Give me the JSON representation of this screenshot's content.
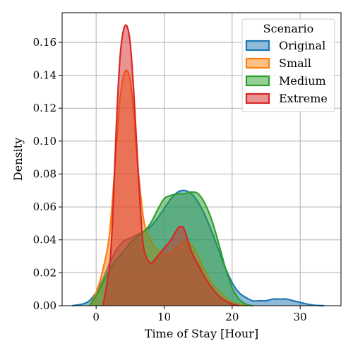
{
  "chart_data": {
    "type": "area",
    "title": "",
    "xlabel": "Time of Stay [Hour]",
    "ylabel": "Density",
    "xlim": [
      -5,
      36
    ],
    "ylim": [
      0,
      0.178
    ],
    "xticks": [
      0,
      10,
      20,
      30
    ],
    "yticks": [
      0.0,
      0.02,
      0.04,
      0.06,
      0.08,
      0.1,
      0.12,
      0.14,
      0.16
    ],
    "ytick_labels": [
      "0.00",
      "0.02",
      "0.04",
      "0.06",
      "0.08",
      "0.10",
      "0.12",
      "0.14",
      "0.16"
    ],
    "grid": true,
    "legend": {
      "title": "Scenario",
      "position": "top-right"
    },
    "series": [
      {
        "name": "Original",
        "color": "#1f77b4",
        "x": [
          -3.5,
          -2,
          -1,
          0,
          1,
          2,
          3,
          4,
          5,
          6,
          7,
          8,
          9,
          10,
          11,
          12,
          13,
          14,
          15,
          16,
          17,
          18,
          19,
          20,
          21,
          22,
          23,
          24,
          25,
          26,
          27,
          28,
          29,
          30,
          31,
          32,
          33.5
        ],
        "y": [
          0.0,
          0.001,
          0.003,
          0.008,
          0.016,
          0.026,
          0.034,
          0.039,
          0.041,
          0.043,
          0.045,
          0.048,
          0.053,
          0.059,
          0.065,
          0.069,
          0.07,
          0.068,
          0.063,
          0.055,
          0.045,
          0.034,
          0.023,
          0.014,
          0.008,
          0.005,
          0.003,
          0.003,
          0.003,
          0.004,
          0.004,
          0.004,
          0.003,
          0.002,
          0.001,
          0.0003,
          0.0
        ]
      },
      {
        "name": "Small",
        "color": "#ff7f0e",
        "x": [
          -1,
          0,
          1,
          2,
          3,
          3.5,
          4,
          4.5,
          5,
          5.5,
          6,
          7,
          8,
          9,
          10,
          11,
          12,
          13,
          14,
          15,
          16,
          17,
          18,
          19,
          20,
          21,
          22
        ],
        "y": [
          0.0,
          0.008,
          0.022,
          0.045,
          0.098,
          0.125,
          0.139,
          0.143,
          0.137,
          0.118,
          0.09,
          0.052,
          0.04,
          0.034,
          0.031,
          0.032,
          0.036,
          0.039,
          0.037,
          0.03,
          0.021,
          0.014,
          0.009,
          0.005,
          0.002,
          0.001,
          0.0
        ]
      },
      {
        "name": "Medium",
        "color": "#2ca02c",
        "x": [
          -1,
          0,
          1,
          2,
          3,
          4,
          5,
          6,
          7,
          8,
          9,
          10,
          11,
          12,
          13,
          14,
          15,
          16,
          17,
          18,
          19,
          20,
          21,
          22,
          23
        ],
        "y": [
          0.0,
          0.006,
          0.014,
          0.022,
          0.028,
          0.033,
          0.038,
          0.042,
          0.045,
          0.05,
          0.058,
          0.065,
          0.067,
          0.068,
          0.068,
          0.069,
          0.068,
          0.062,
          0.052,
          0.038,
          0.023,
          0.011,
          0.004,
          0.001,
          0.0
        ]
      },
      {
        "name": "Extreme",
        "color": "#d62728",
        "x": [
          1,
          2,
          2.5,
          3,
          3.5,
          4,
          4.5,
          5,
          5.5,
          6,
          6.5,
          7,
          8,
          9,
          10,
          11,
          12,
          12.5,
          13,
          14,
          15,
          16,
          17,
          18,
          19,
          20,
          21
        ],
        "y": [
          0.0,
          0.025,
          0.06,
          0.112,
          0.15,
          0.167,
          0.17,
          0.16,
          0.132,
          0.095,
          0.06,
          0.035,
          0.026,
          0.03,
          0.035,
          0.04,
          0.047,
          0.048,
          0.046,
          0.033,
          0.025,
          0.017,
          0.011,
          0.006,
          0.003,
          0.001,
          0.0
        ]
      }
    ]
  }
}
